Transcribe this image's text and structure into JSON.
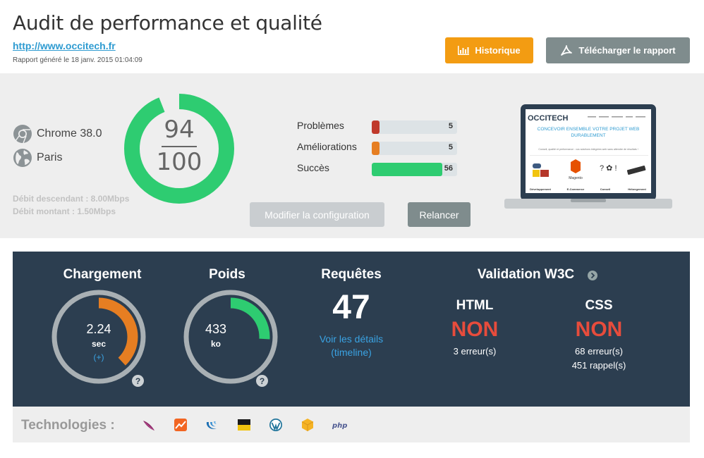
{
  "header": {
    "title": "Audit de performance et qualité",
    "url": "http://www.occitech.fr",
    "report_date": "Rapport généré le 18 janv. 2015 01:04:09",
    "history_label": "Historique",
    "download_label": "Télécharger le rapport"
  },
  "environment": {
    "browser": "Chrome 38.0",
    "location": "Paris",
    "download_speed": "Débit descendant : 8.00Mbps",
    "upload_speed": "Débit montant : 1.50Mbps"
  },
  "score": {
    "value": "94",
    "max": "100",
    "fraction": 0.94,
    "color": "#2ecc71"
  },
  "stats": [
    {
      "label": "Problèmes",
      "count": "5",
      "fraction": 0.09,
      "color": "#c0392b"
    },
    {
      "label": "Améliorations",
      "count": "5",
      "fraction": 0.09,
      "color": "#e67e22"
    },
    {
      "label": "Succès",
      "count": "56",
      "fraction": 0.83,
      "color": "#2ecc71"
    }
  ],
  "actions": {
    "configure_label": "Modifier la configuration",
    "restart_label": "Relancer"
  },
  "preview": {
    "brand": "OCCITECH",
    "headline_line1": "CONCEVOIR ENSEMBLE VOTRE PROJET WEB",
    "headline_line2": "DURABLEMENT",
    "tagline": "Conseil, qualité et performance : vos solutions intégrées web sans attendre de résultats !",
    "columns": [
      "Développement",
      "E-Commerce",
      "Conseil",
      "Hébergement"
    ]
  },
  "metrics": {
    "load": {
      "title": "Chargement",
      "value": "2.24",
      "unit": "sec",
      "more": "(+)",
      "fraction": 0.38,
      "color": "#e67e22"
    },
    "weight": {
      "title": "Poids",
      "value": "433",
      "unit": "ko",
      "fraction": 0.26,
      "color": "#2ecc71"
    },
    "requests": {
      "title": "Requêtes",
      "count": "47",
      "link_line1": "Voir les détails",
      "link_line2": "(timeline)"
    },
    "w3c": {
      "title": "Validation W3C",
      "html": {
        "label": "HTML",
        "verdict": "NON",
        "errors": "3 erreur(s)"
      },
      "css": {
        "label": "CSS",
        "verdict": "NON",
        "errors": "68 erreur(s)",
        "reminders": "451 rappel(s)"
      }
    },
    "help_glyph": "?",
    "error_color": "#e74c3c"
  },
  "technologies": {
    "label": "Technologies :",
    "icons": [
      "feather-icon",
      "chart-icon",
      "jquery-icon",
      "flag-icon",
      "wordpress-icon",
      "box-icon",
      "php-icon"
    ],
    "php_text": "php"
  }
}
